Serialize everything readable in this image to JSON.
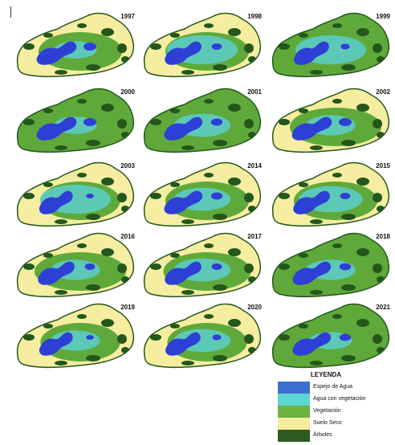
{
  "panels": [
    {
      "year": "1997",
      "water": 1.0,
      "aquatic": 0.6,
      "dry": 0.9
    },
    {
      "year": "1998",
      "water": 0.8,
      "aquatic": 1.0,
      "dry": 0.9
    },
    {
      "year": "1999",
      "water": 0.7,
      "aquatic": 1.0,
      "dry": 0.5
    },
    {
      "year": "2000",
      "water": 1.0,
      "aquatic": 0.6,
      "dry": 0.6
    },
    {
      "year": "2001",
      "water": 0.9,
      "aquatic": 0.8,
      "dry": 0.5
    },
    {
      "year": "2002",
      "water": 1.0,
      "aquatic": 0.7,
      "dry": 0.7
    },
    {
      "year": "2003",
      "water": 0.6,
      "aquatic": 1.0,
      "dry": 1.0
    },
    {
      "year": "2014",
      "water": 0.9,
      "aquatic": 0.8,
      "dry": 0.9
    },
    {
      "year": "2015",
      "water": 0.8,
      "aquatic": 0.9,
      "dry": 0.9
    },
    {
      "year": "2016",
      "water": 0.8,
      "aquatic": 0.7,
      "dry": 0.7
    },
    {
      "year": "2017",
      "water": 0.8,
      "aquatic": 0.8,
      "dry": 0.8
    },
    {
      "year": "2018",
      "water": 0.9,
      "aquatic": 0.7,
      "dry": 0.6
    },
    {
      "year": "2019",
      "water": 0.6,
      "aquatic": 0.7,
      "dry": 1.0
    },
    {
      "year": "2020",
      "water": 0.7,
      "aquatic": 0.8,
      "dry": 1.0
    },
    {
      "year": "2021",
      "water": 0.9,
      "aquatic": 0.6,
      "dry": 0.6
    }
  ],
  "legend": {
    "title": "LEYENDA",
    "items": [
      {
        "label": "Espejo de Agua",
        "color": "#3d6fd1"
      },
      {
        "label": "Agua con vegetación",
        "color": "#5cd6d0"
      },
      {
        "label": "Vegetación",
        "color": "#6cb33f"
      },
      {
        "label": "Suelo Seco",
        "color": "#f7ec9c"
      },
      {
        "label": "Árboles",
        "color": "#2d5a1e"
      }
    ]
  },
  "colors": {
    "water": "#2e3fd6",
    "aquatic": "#5cc9b6",
    "vegetation": "#5fa93a",
    "dry": "#f5eda0",
    "trees": "#23571c"
  }
}
